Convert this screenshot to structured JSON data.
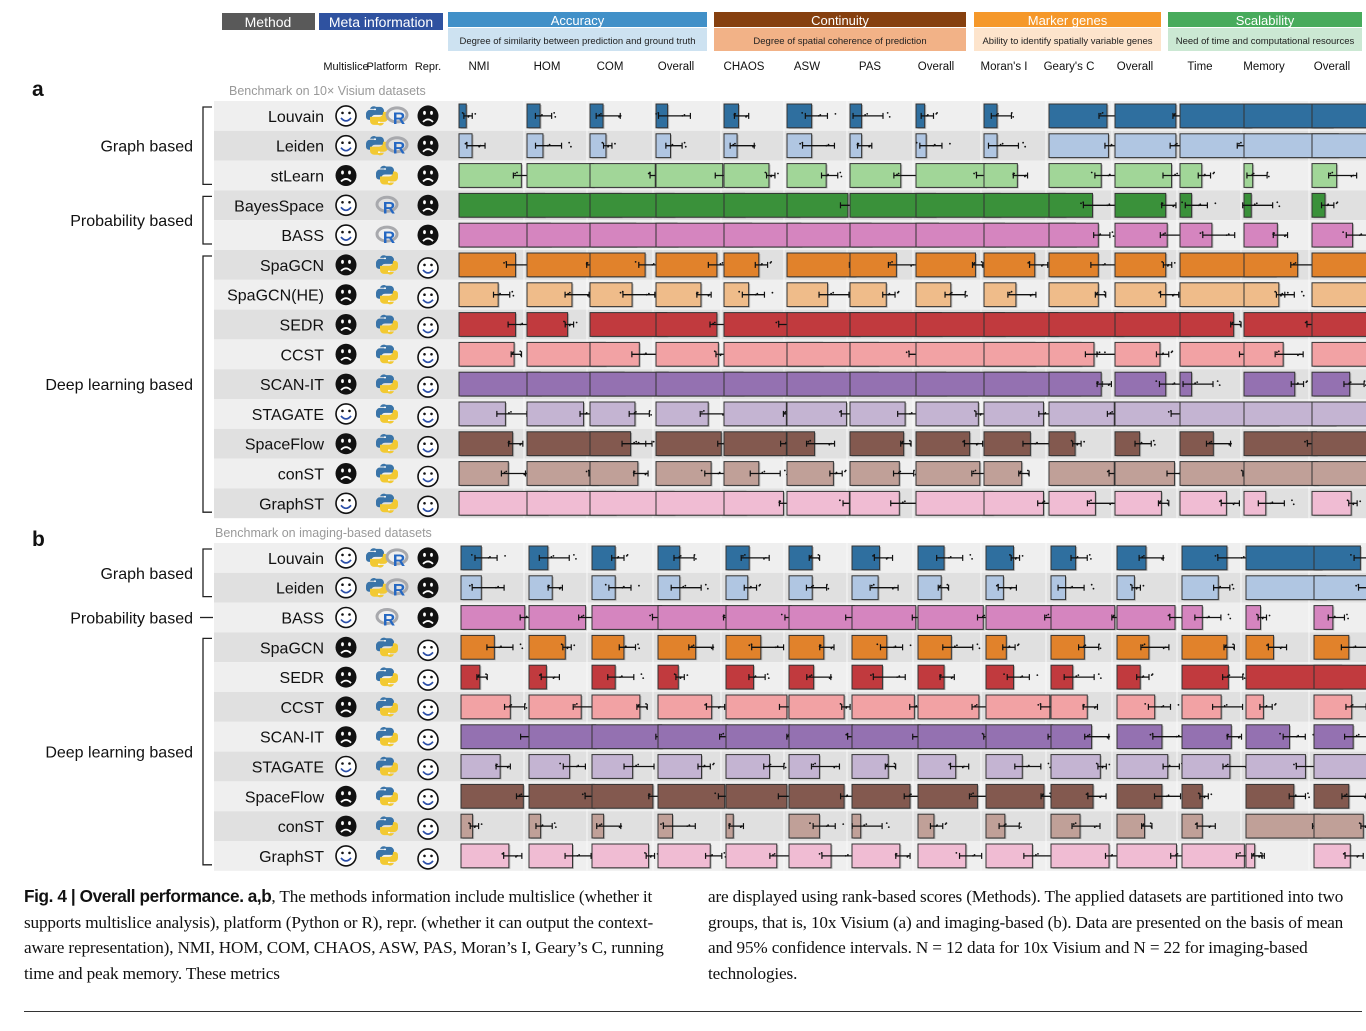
{
  "header": {
    "method_label": "Method",
    "meta_label": "Meta information",
    "meta_columns": [
      "Multislice",
      "Platform",
      "Repr."
    ],
    "groups": [
      {
        "name": "Accuracy",
        "desc": "Degree of similarity between prediction and ground truth",
        "color": "#4190c8",
        "desc_color": "#cde2f1",
        "metrics": [
          "NMI",
          "HOM",
          "COM",
          "Overall"
        ]
      },
      {
        "name": "Continuity",
        "desc": "Degree of spatial coherence of prediction",
        "color": "#86400f",
        "desc_color": "#f2b287",
        "metrics": [
          "CHAOS",
          "ASW",
          "PAS",
          "Overall"
        ]
      },
      {
        "name": "Marker genes",
        "desc": "Ability to identify spatially variable genes",
        "color": "#f5982a",
        "desc_color": "#fde4cc",
        "metrics": [
          "Moran's I",
          "Geary's C",
          "Overall"
        ]
      },
      {
        "name": "Scalability",
        "desc": "Need of time and computational resources",
        "color": "#48ab5c",
        "desc_color": "#cbe8d3",
        "metrics": [
          "Time",
          "Memory",
          "Overall"
        ]
      }
    ],
    "header_colors": {
      "method": "#595959",
      "meta": "#2f52a0"
    }
  },
  "method_colors": {
    "Louvain": "#2f6f9f",
    "Leiden": "#b0c6e2",
    "stLearn": "#a1d698",
    "BayesSpace": "#3a913a",
    "BASS": "#d585bf",
    "SpaGCN": "#e1822b",
    "SpaGCN(HE)": "#efbc8a",
    "SEDR": "#c13a3e",
    "CCST": "#f2a2a4",
    "SCAN-IT": "#9471b1",
    "STAGATE": "#c4b4d2",
    "SpaceFlow": "#83594f",
    "conST": "#c0a098",
    "GraphST": "#f0bcd3"
  },
  "icons": {
    "happy": "smiley-icon",
    "sad": "frowny-icon",
    "python": "python-icon",
    "r": "r-lang-icon"
  },
  "panels": [
    {
      "letter": "a",
      "subtitle": "Benchmark on 10× Visium datasets",
      "categories": [
        {
          "label": "Graph based",
          "count": 3
        },
        {
          "label": "Probability based",
          "count": 2
        },
        {
          "label": "Deep learning based",
          "count": 9
        }
      ],
      "methods": [
        {
          "name": "Louvain",
          "multislice": "happy",
          "platform": [
            "python",
            "r"
          ],
          "repr": "sad"
        },
        {
          "name": "Leiden",
          "multislice": "happy",
          "platform": [
            "python",
            "r"
          ],
          "repr": "sad"
        },
        {
          "name": "stLearn",
          "multislice": "sad",
          "platform": [
            "python"
          ],
          "repr": "sad"
        },
        {
          "name": "BayesSpace",
          "multislice": "happy",
          "platform": [
            "r"
          ],
          "repr": "sad"
        },
        {
          "name": "BASS",
          "multislice": "happy",
          "platform": [
            "r"
          ],
          "repr": "sad"
        },
        {
          "name": "SpaGCN",
          "multislice": "sad",
          "platform": [
            "python"
          ],
          "repr": "happy"
        },
        {
          "name": "SpaGCN(HE)",
          "multislice": "sad",
          "platform": [
            "python"
          ],
          "repr": "happy"
        },
        {
          "name": "SEDR",
          "multislice": "sad",
          "platform": [
            "python"
          ],
          "repr": "happy"
        },
        {
          "name": "CCST",
          "multislice": "sad",
          "platform": [
            "python"
          ],
          "repr": "happy"
        },
        {
          "name": "SCAN-IT",
          "multislice": "sad",
          "platform": [
            "python"
          ],
          "repr": "happy"
        },
        {
          "name": "STAGATE",
          "multislice": "happy",
          "platform": [
            "python"
          ],
          "repr": "happy"
        },
        {
          "name": "SpaceFlow",
          "multislice": "sad",
          "platform": [
            "python"
          ],
          "repr": "happy"
        },
        {
          "name": "conST",
          "multislice": "sad",
          "platform": [
            "python"
          ],
          "repr": "happy"
        },
        {
          "name": "GraphST",
          "multislice": "happy",
          "platform": [
            "python"
          ],
          "repr": "happy"
        }
      ],
      "scores": [
        [
          0.05,
          0.09,
          0.09,
          0.08,
          0.1,
          0.17,
          0.08,
          0.06,
          0.09,
          0.4,
          0.42,
          0.49,
          0.61,
          0.71
        ],
        [
          0.09,
          0.11,
          0.11,
          0.1,
          0.09,
          0.17,
          0.08,
          0.07,
          0.09,
          0.41,
          0.42,
          0.45,
          0.65,
          0.71
        ],
        [
          0.43,
          0.46,
          0.45,
          0.46,
          0.31,
          0.27,
          0.35,
          0.48,
          0.23,
          0.36,
          0.39,
          0.15,
          0.06,
          0.17
        ],
        [
          0.59,
          0.65,
          0.58,
          0.61,
          0.52,
          0.42,
          0.59,
          0.58,
          0.56,
          0.3,
          0.35,
          0.08,
          0.05,
          0.09
        ],
        [
          0.63,
          0.75,
          0.6,
          0.66,
          0.53,
          0.58,
          0.61,
          0.61,
          0.63,
          0.34,
          0.36,
          0.22,
          0.23,
          0.28
        ],
        [
          0.39,
          0.44,
          0.38,
          0.42,
          0.24,
          0.47,
          0.32,
          0.41,
          0.35,
          0.34,
          0.35,
          0.66,
          0.37,
          0.66
        ],
        [
          0.27,
          0.31,
          0.29,
          0.31,
          0.17,
          0.28,
          0.25,
          0.24,
          0.22,
          0.34,
          0.35,
          0.66,
          0.24,
          0.58
        ],
        [
          0.39,
          0.28,
          0.53,
          0.42,
          0.44,
          0.5,
          0.63,
          0.61,
          0.51,
          0.51,
          0.51,
          0.37,
          0.47,
          0.55
        ],
        [
          0.38,
          0.54,
          0.34,
          0.43,
          0.68,
          0.63,
          0.47,
          0.82,
          0.67,
          0.31,
          0.31,
          0.45,
          0.27,
          0.46
        ],
        [
          0.56,
          0.67,
          0.54,
          0.6,
          0.66,
          0.63,
          0.66,
          0.76,
          0.66,
          0.36,
          0.35,
          0.08,
          0.35,
          0.26
        ],
        [
          0.32,
          0.39,
          0.31,
          0.36,
          0.43,
          0.41,
          0.38,
          0.43,
          0.41,
          0.45,
          0.45,
          0.68,
          0.63,
          0.81
        ],
        [
          0.37,
          0.71,
          0.28,
          0.45,
          0.43,
          0.19,
          0.37,
          0.37,
          0.32,
          0.18,
          0.17,
          0.23,
          0.5,
          0.45
        ],
        [
          0.34,
          0.49,
          0.33,
          0.38,
          0.24,
          0.32,
          0.34,
          0.44,
          0.26,
          0.45,
          0.41,
          0.45,
          0.51,
          0.58
        ],
        [
          0.61,
          0.61,
          0.58,
          0.62,
          0.41,
          0.43,
          0.34,
          0.53,
          0.41,
          0.32,
          0.32,
          0.32,
          0.15,
          0.27
        ]
      ]
    },
    {
      "letter": "b",
      "subtitle": "Benchmark on imaging-based datasets",
      "categories": [
        {
          "label": "Graph based",
          "count": 2
        },
        {
          "label": "Probability based",
          "count": 1
        },
        {
          "label": "Deep learning based",
          "count": 8
        }
      ],
      "methods": [
        {
          "name": "Louvain",
          "multislice": "happy",
          "platform": [
            "python",
            "r"
          ],
          "repr": "sad"
        },
        {
          "name": "Leiden",
          "multislice": "happy",
          "platform": [
            "python",
            "r"
          ],
          "repr": "sad"
        },
        {
          "name": "BASS",
          "multislice": "happy",
          "platform": [
            "r"
          ],
          "repr": "sad"
        },
        {
          "name": "SpaGCN",
          "multislice": "sad",
          "platform": [
            "python"
          ],
          "repr": "happy"
        },
        {
          "name": "SEDR",
          "multislice": "sad",
          "platform": [
            "python"
          ],
          "repr": "happy"
        },
        {
          "name": "CCST",
          "multislice": "sad",
          "platform": [
            "python"
          ],
          "repr": "happy"
        },
        {
          "name": "SCAN-IT",
          "multislice": "sad",
          "platform": [
            "python"
          ],
          "repr": "happy"
        },
        {
          "name": "STAGATE",
          "multislice": "happy",
          "platform": [
            "python"
          ],
          "repr": "happy"
        },
        {
          "name": "SpaceFlow",
          "multislice": "sad",
          "platform": [
            "python"
          ],
          "repr": "happy"
        },
        {
          "name": "conST",
          "multislice": "sad",
          "platform": [
            "python"
          ],
          "repr": "happy"
        },
        {
          "name": "GraphST",
          "multislice": "happy",
          "platform": [
            "python"
          ],
          "repr": "happy"
        }
      ],
      "scores": [
        [
          0.14,
          0.13,
          0.16,
          0.15,
          0.16,
          0.16,
          0.19,
          0.18,
          0.19,
          0.17,
          0.2,
          0.31,
          0.52,
          0.32
        ],
        [
          0.14,
          0.16,
          0.16,
          0.15,
          0.15,
          0.16,
          0.18,
          0.16,
          0.12,
          0.1,
          0.12,
          0.25,
          0.55,
          0.37
        ],
        [
          0.44,
          0.39,
          0.48,
          0.48,
          0.45,
          0.45,
          0.44,
          0.45,
          0.46,
          0.44,
          0.4,
          0.14,
          0.1,
          0.13
        ],
        [
          0.23,
          0.25,
          0.22,
          0.26,
          0.24,
          0.24,
          0.24,
          0.23,
          0.14,
          0.23,
          0.22,
          0.31,
          0.19,
          0.24
        ],
        [
          0.13,
          0.12,
          0.16,
          0.14,
          0.19,
          0.17,
          0.21,
          0.18,
          0.19,
          0.15,
          0.16,
          0.32,
          0.66,
          0.55
        ],
        [
          0.34,
          0.36,
          0.33,
          0.37,
          0.42,
          0.38,
          0.43,
          0.42,
          0.44,
          0.25,
          0.26,
          0.27,
          0.12,
          0.26
        ],
        [
          0.47,
          0.46,
          0.48,
          0.48,
          0.44,
          0.44,
          0.47,
          0.47,
          0.46,
          0.28,
          0.31,
          0.34,
          0.3,
          0.27
        ],
        [
          0.27,
          0.28,
          0.28,
          0.3,
          0.3,
          0.21,
          0.25,
          0.26,
          0.25,
          0.34,
          0.35,
          0.33,
          0.41,
          0.45
        ],
        [
          0.43,
          0.45,
          0.42,
          0.46,
          0.42,
          0.38,
          0.4,
          0.41,
          0.4,
          0.29,
          0.31,
          0.14,
          0.33,
          0.24
        ],
        [
          0.08,
          0.08,
          0.08,
          0.1,
          0.05,
          0.21,
          0.06,
          0.11,
          0.13,
          0.2,
          0.19,
          0.14,
          0.51,
          0.34
        ],
        [
          0.33,
          0.3,
          0.39,
          0.36,
          0.35,
          0.29,
          0.33,
          0.33,
          0.32,
          0.4,
          0.41,
          0.43,
          0.06,
          0.25
        ]
      ]
    }
  ],
  "caption": {
    "fig_label": "Fig. 4 | Overall performance.",
    "panels_bold": "a,b",
    "left_text": ", The methods information include multislice (whether it supports multislice analysis), platform (Python or R), repr. (whether it can output the context-aware representation), NMI, HOM, COM, CHAOS, ASW, PAS, Moran’s I, Geary’s C, running time and peak memory. These metrics",
    "right_text": "are displayed using rank-based scores (Methods). The applied datasets are partitioned into two groups, that is, 10x Visium (a) and imaging-based (b). Data are presented on the basis of mean and 95% confidence intervals. N = 12 data for 10x Visium and N = 22 for imaging-based technologies."
  },
  "chart_data": {
    "type": "bar",
    "title": "Overall performance",
    "description": "Horizontal rank-based score bars per method and metric, with mean and 95% CI error bars",
    "metrics": [
      "NMI",
      "HOM",
      "COM",
      "Accuracy Overall",
      "CHAOS",
      "ASW",
      "PAS",
      "Continuity Overall",
      "Moran's I",
      "Geary's C",
      "Marker genes Overall",
      "Time",
      "Memory",
      "Scalability Overall"
    ],
    "value_range": [
      0,
      1
    ],
    "panels": [
      "a: 10x Visium (N = 12)",
      "b: imaging-based (N = 22)"
    ],
    "note": "Bar values are rank-based scores per method (see panels[].scores, row order = panels[].methods)."
  }
}
